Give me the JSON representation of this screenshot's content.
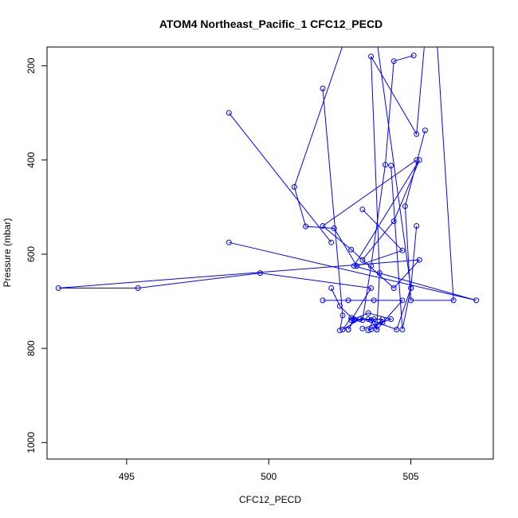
{
  "chart_data": {
    "type": "line",
    "title": "ATOM4 Northeast_Pacific_1 CFC12_PECD",
    "xlabel": "CFC12_PECD",
    "ylabel": "Pressure (mbar)",
    "xlim": [
      492.2,
      507.9
    ],
    "ylim": [
      1035,
      160
    ],
    "y_reversed": true,
    "grid": false,
    "legend": "none",
    "x_ticks": [
      495,
      500,
      505
    ],
    "y_ticks": [
      200,
      400,
      600,
      800,
      1000
    ],
    "color": "#0000ff",
    "series": [
      {
        "x": [
          505.5,
          505.2,
          503.6,
          503.9,
          503.8,
          503.7,
          503.5,
          504.0
        ],
        "y": [
          140,
          345,
          180,
          640,
          760,
          738,
          762,
          745
        ]
      },
      {
        "x": [
          505.1,
          504.4,
          504.1,
          503.6,
          503.3,
          502.9,
          502.6,
          503.2,
          504.0,
          503.6
        ],
        "y": [
          178,
          190,
          410,
          625,
          740,
          735,
          760,
          738,
          738,
          760
        ]
      },
      {
        "x": [
          501.9,
          502.6,
          502.5
        ],
        "y": [
          248,
          730,
          762
        ]
      },
      {
        "x": [
          505.5,
          504.8,
          505.0,
          506.5,
          505.9
        ],
        "y": [
          337,
          498,
          698,
          698,
          130
        ]
      },
      {
        "x": [
          505.2,
          505.0,
          504.5,
          503.5,
          503.0,
          502.5,
          502.2
        ],
        "y": [
          540,
          672,
          760,
          738,
          740,
          710,
          672
        ]
      },
      {
        "x": [
          501.9,
          502.8,
          503.7,
          504.7,
          503.8,
          503.6,
          503.2,
          503.0,
          502.8
        ],
        "y": [
          698,
          698,
          698,
          698,
          760,
          740,
          738,
          740,
          760
        ]
      },
      {
        "x": [
          505.2,
          501.9,
          502.9,
          504.4,
          505.3,
          492.6,
          495.4,
          499.7,
          503.6,
          502.9
        ],
        "y": [
          400,
          540,
          590,
          672,
          612,
          672,
          672,
          640,
          672,
          740
        ]
      },
      {
        "x": [
          502.2,
          498.6
        ],
        "y": [
          575,
          300
        ]
      },
      {
        "x": [
          498.6,
          507.3,
          503.0,
          505.3,
          504.4,
          503.3
        ],
        "y": [
          575,
          698,
          625,
          400,
          530,
          612
        ]
      },
      {
        "x": [
          503.3,
          504.7,
          503.1,
          502.3,
          501.3,
          500.9,
          502.7
        ],
        "y": [
          505,
          592,
          625,
          545,
          541,
          457,
          140
        ]
      },
      {
        "x": [
          504.3,
          504.7,
          505.0,
          503.8
        ],
        "y": [
          412,
          760,
          672,
          145
        ]
      },
      {
        "x": [
          503.3,
          504.3,
          503.5,
          503.0,
          502.8
        ],
        "y": [
          758,
          738,
          725,
          738,
          760
        ]
      }
    ]
  }
}
